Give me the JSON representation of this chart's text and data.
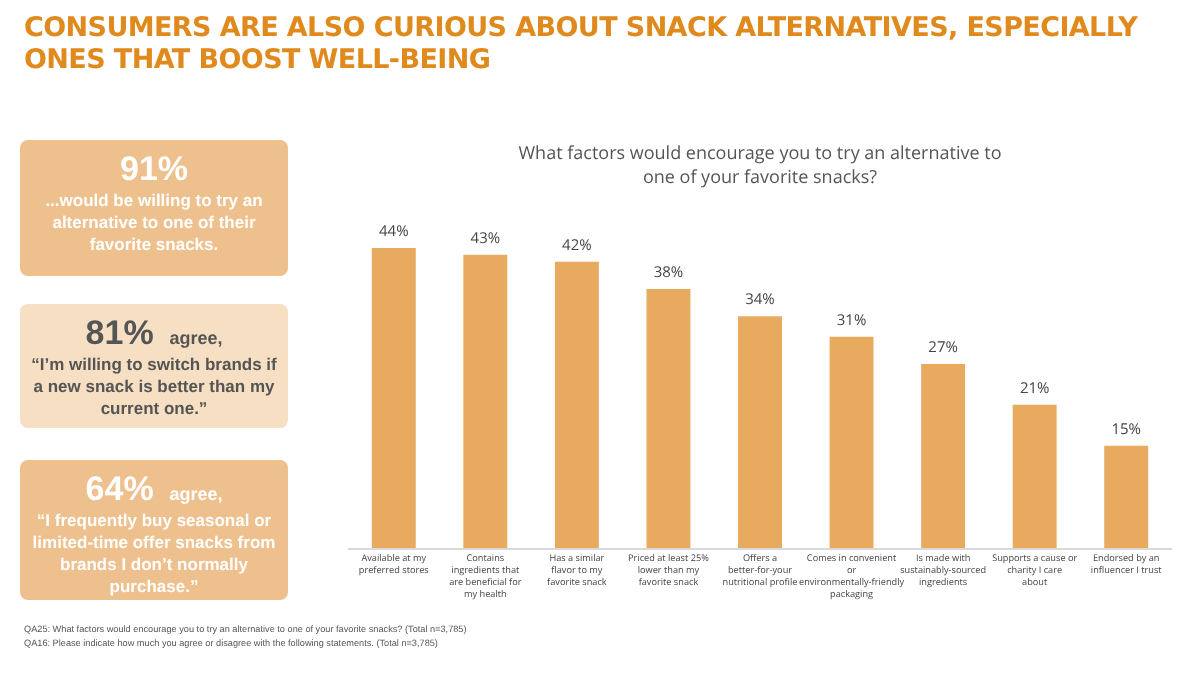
{
  "chart_data": [
    {
      "type": "other",
      "title": "CONSUMERS ARE ALSO CURIOUS ABOUT SNACK ALTERNATIVES, ESPECIALLY ONES THAT BOOST WELL-BEING",
      "annotations": [
        "91%\n...would be willing to try an alternative to one of their favorite snacks.",
        "81% agree,\n“I’m willing to switch brands if a new snack is better than my current one.”",
        "64% agree,\n“I frequently buy seasonal or limited-time offer snacks from brands I don’t normally purchase.”",
        "QA25: What factors would encourage you to try an alternative to one of your favorite snacks? (Total n=3,785)",
        "QA16: Please indicate how much you agree or disagree with the following statements. (Total n=3,785)"
      ]
    },
    {
      "type": "bar",
      "title": "What factors would encourage you to try an alternative to one of your favorite snacks?",
      "categories": [
        "Available at my preferred stores",
        "Contains ingredients that are beneficial for my health",
        "Has a similar flavor to my favorite snack",
        "Priced at least 25% lower than my favorite snack",
        "Offers a better-for-your nutritional profile",
        "Comes in convenient or environmentally-friendly packaging",
        "Is made with sustainably-sourced ingredients",
        "Supports a cause or charity I care about",
        "Endorsed by an influencer I trust"
      ],
      "values": [
        44,
        43,
        42,
        38,
        34,
        31,
        27,
        21,
        15
      ],
      "value_labels": [
        "44%",
        "43%",
        "42%",
        "38%",
        "34%",
        "31%",
        "27%",
        "21%",
        "15%"
      ],
      "color": "#e8aa5e"
    }
  ]
}
